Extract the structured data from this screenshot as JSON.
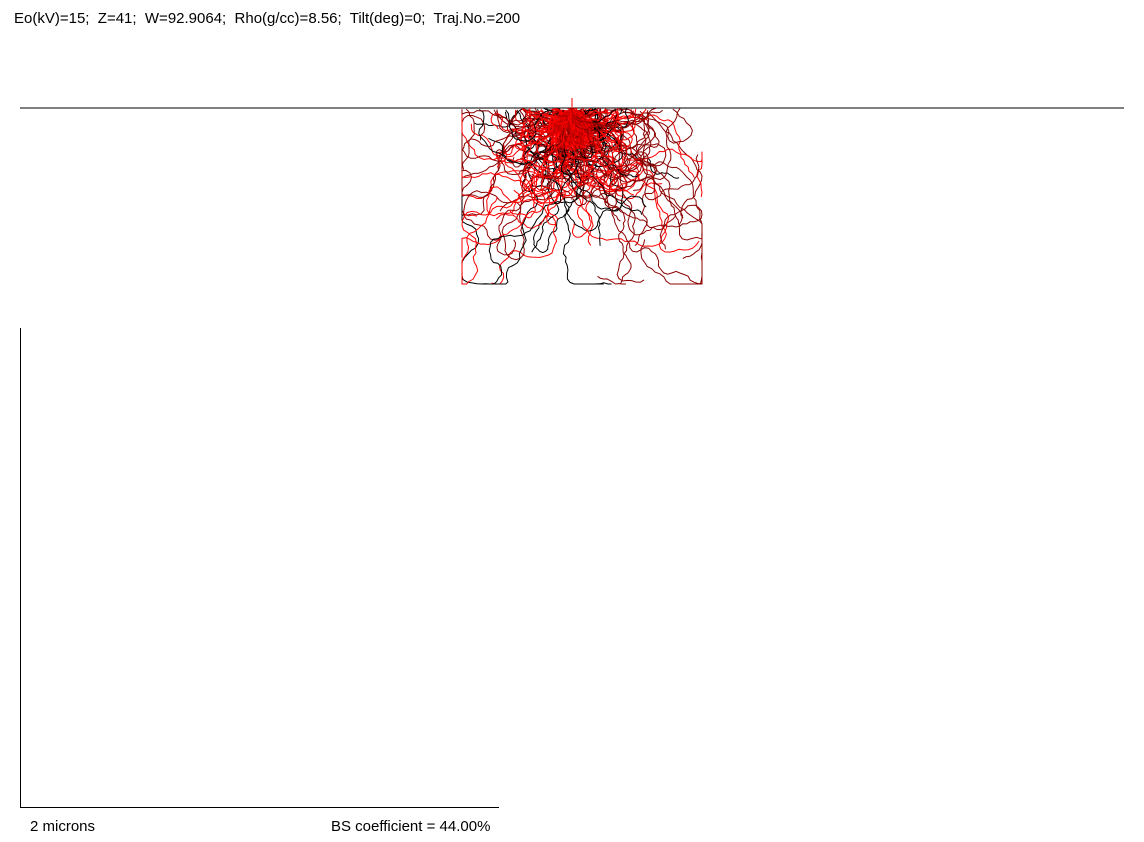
{
  "header": {
    "parameters": "Eo(kV)=15;  Z=41;  W=92.9064;  Rho(g/cc)=8.56;  Tilt(deg)=0;  Traj.No.=200"
  },
  "footer": {
    "scale_label": "2 microns",
    "bs_coefficient": "BS coefficient = 44.00%"
  },
  "simulation": {
    "trajectory_count": 200,
    "trajectory_colors": [
      "#000000",
      "#8b0000",
      "#ff0000"
    ],
    "surface_color": "#000000"
  }
}
